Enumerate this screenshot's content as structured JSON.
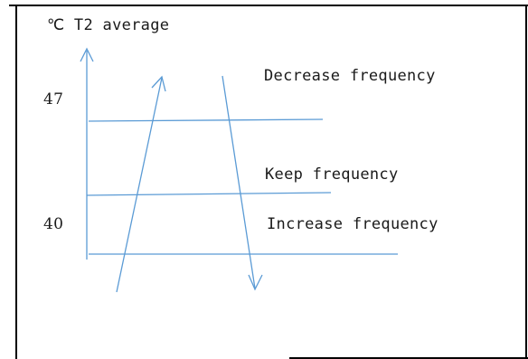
{
  "axis": {
    "unit_label": "℃ T2 average"
  },
  "thresholds": {
    "upper": "47",
    "lower": "40"
  },
  "zones": {
    "decrease": "Decrease frequency",
    "keep": "Keep frequency",
    "increase": "Increase frequency"
  },
  "colors": {
    "line": "#5b9bd5",
    "frame": "#000000",
    "text": "#1a1a1a"
  }
}
